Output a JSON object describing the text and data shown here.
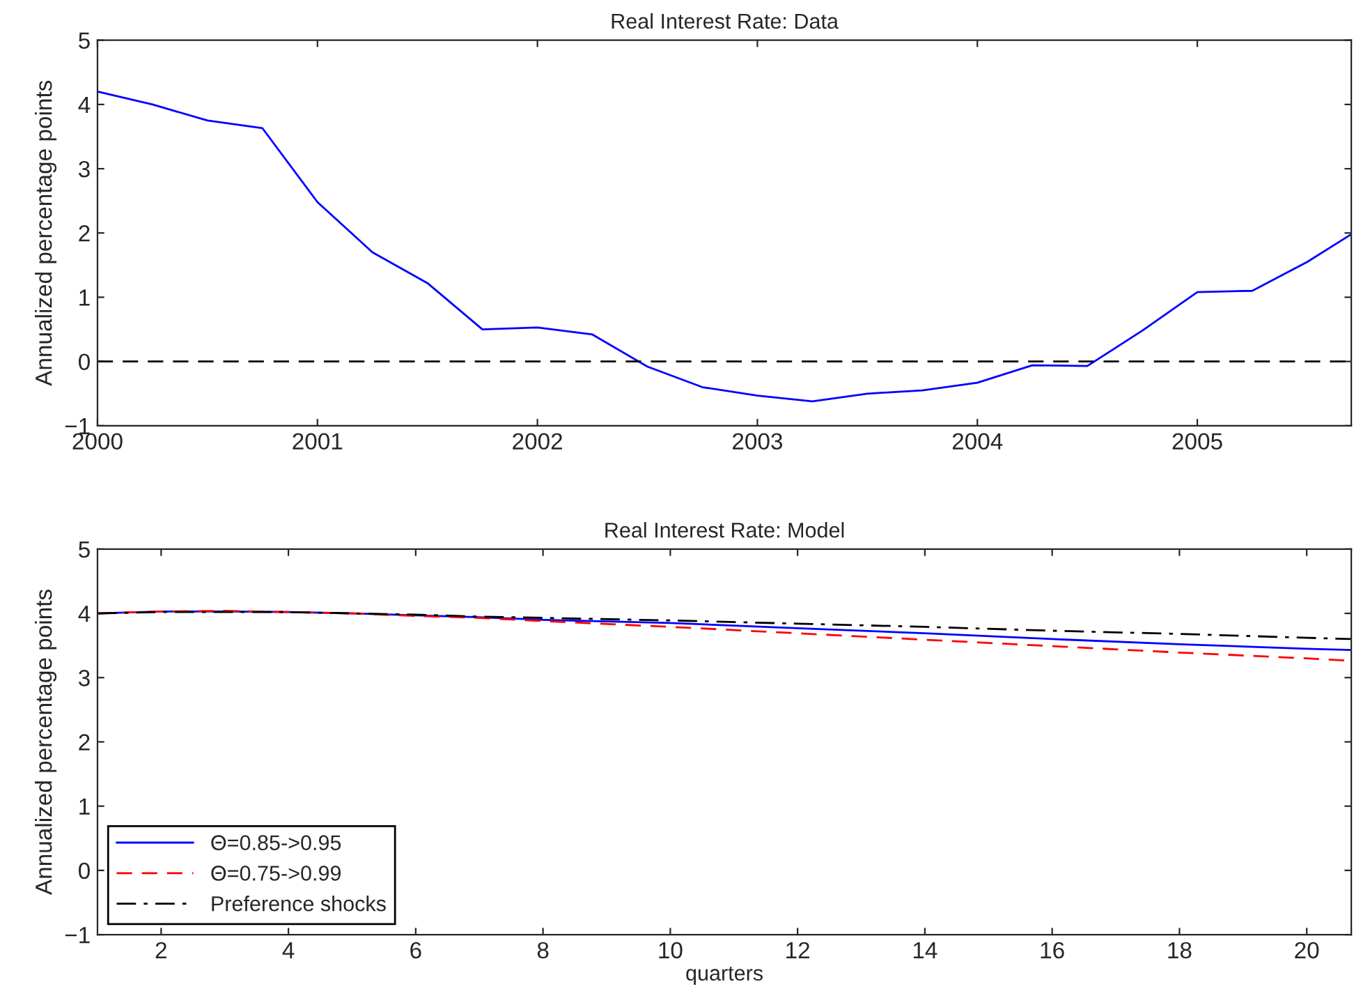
{
  "chart_data": [
    {
      "type": "line",
      "title": "Real Interest Rate: Data",
      "ylabel": "Annualized percentage points",
      "xlim": [
        2000,
        2005.7
      ],
      "xticks": [
        2000,
        2001,
        2002,
        2003,
        2004,
        2005
      ],
      "ylim": [
        -1,
        5
      ],
      "yticks": [
        -1,
        0,
        1,
        2,
        3,
        4,
        5
      ],
      "grid": false,
      "legend": false,
      "x": [
        2000,
        2000.25,
        2000.5,
        2000.75,
        2001,
        2001.25,
        2001.5,
        2001.75,
        2002,
        2002.25,
        2002.5,
        2002.75,
        2003,
        2003.25,
        2003.5,
        2003.75,
        2004,
        2004.25,
        2004.5,
        2004.75,
        2005,
        2005.25,
        2005.5,
        2005.7
      ],
      "series": [
        {
          "color": "#0000ff",
          "line_style": "solid",
          "values": [
            4.2,
            4.0,
            3.75,
            3.63,
            2.48,
            1.7,
            1.22,
            0.5,
            0.53,
            0.42,
            -0.08,
            -0.4,
            -0.53,
            -0.62,
            -0.5,
            -0.45,
            -0.33,
            -0.06,
            -0.07,
            0.48,
            1.08,
            1.1,
            1.55,
            1.98
          ]
        }
      ],
      "ref_lines": [
        {
          "axis": "y",
          "value": 0,
          "color": "#000000",
          "line_style": "dashed"
        }
      ]
    },
    {
      "type": "line",
      "title": "Real Interest Rate: Model",
      "xlabel": "quarters",
      "ylabel": "Annualized percentage points",
      "xlim": [
        1,
        20.7
      ],
      "xticks": [
        2,
        4,
        6,
        8,
        10,
        12,
        14,
        16,
        18,
        20
      ],
      "ylim": [
        -1,
        5
      ],
      "yticks": [
        -1,
        0,
        1,
        2,
        3,
        4,
        5
      ],
      "grid": false,
      "legend": "bottom left",
      "x": [
        1,
        2,
        3,
        4,
        5,
        6,
        7,
        8,
        10,
        12,
        14,
        16,
        18,
        20,
        20.7
      ],
      "series": [
        {
          "name": "Θ=0.85->0.95",
          "color": "#0000ff",
          "line_style": "solid",
          "values": [
            4.0,
            4.03,
            4.03,
            4.02,
            4.0,
            3.97,
            3.94,
            3.9,
            3.85,
            3.77,
            3.69,
            3.6,
            3.52,
            3.45,
            3.43
          ]
        },
        {
          "name": "Θ=0.75->0.99",
          "color": "#ff0000",
          "line_style": "dashed",
          "values": [
            4.0,
            4.03,
            4.04,
            4.02,
            4.0,
            3.96,
            3.93,
            3.88,
            3.79,
            3.69,
            3.59,
            3.49,
            3.39,
            3.3,
            3.26
          ]
        },
        {
          "name": "Preference shocks",
          "color": "#000000",
          "line_style": "dashdot",
          "values": [
            4.0,
            4.02,
            4.02,
            4.02,
            4.0,
            3.98,
            3.95,
            3.93,
            3.89,
            3.84,
            3.79,
            3.73,
            3.68,
            3.62,
            3.6
          ]
        }
      ]
    }
  ]
}
